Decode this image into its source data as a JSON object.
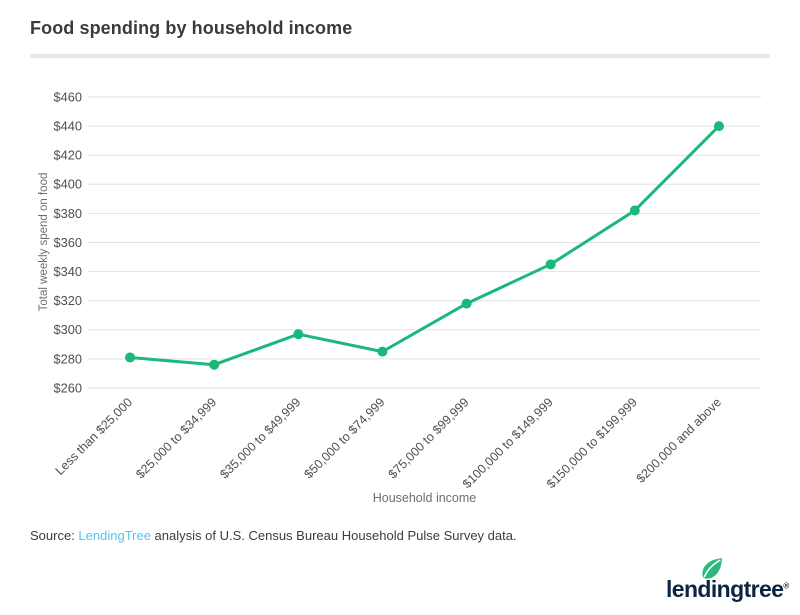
{
  "page": {
    "title": "Food spending by household income",
    "source": {
      "prefix": "Source: ",
      "link": "LendingTree",
      "suffix": " analysis of U.S. Census Bureau Household Pulse Survey data."
    },
    "logo": {
      "wordmark": "lendingtree",
      "registered": "®"
    }
  },
  "colors": {
    "series_green": "#1ab87a",
    "gridline": "#e2e2e2",
    "tick_label": "#4f4f4f",
    "axis_title": "#6e6e6e",
    "title_text": "#3b3b3b",
    "link_blue": "#54c3f1",
    "logo_navy": "#0e2443",
    "leaf_green": "#2eb97c",
    "divider": "#e8e8e8"
  },
  "chart_data": {
    "type": "line",
    "title": "Food spending by household income",
    "xlabel": "Household income",
    "ylabel": "Total weekly spend on food",
    "categories": [
      "Less than $25,000",
      "$25,000 to $34,999",
      "$35,000 to $49,999",
      "$50,000 to $74,999",
      "$75,000 to $99,999",
      "$100,000 to $149,999",
      "$150,000 to $199,999",
      "$200,000 and above"
    ],
    "values": [
      281,
      276,
      297,
      285,
      318,
      345,
      382,
      440
    ],
    "ylim": [
      260,
      460
    ],
    "y_tick_step": 20,
    "y_tick_prefix": "$",
    "grid": "horizontal-only",
    "legend": "none",
    "marker": "circle",
    "series_color": "#1ab87a"
  }
}
